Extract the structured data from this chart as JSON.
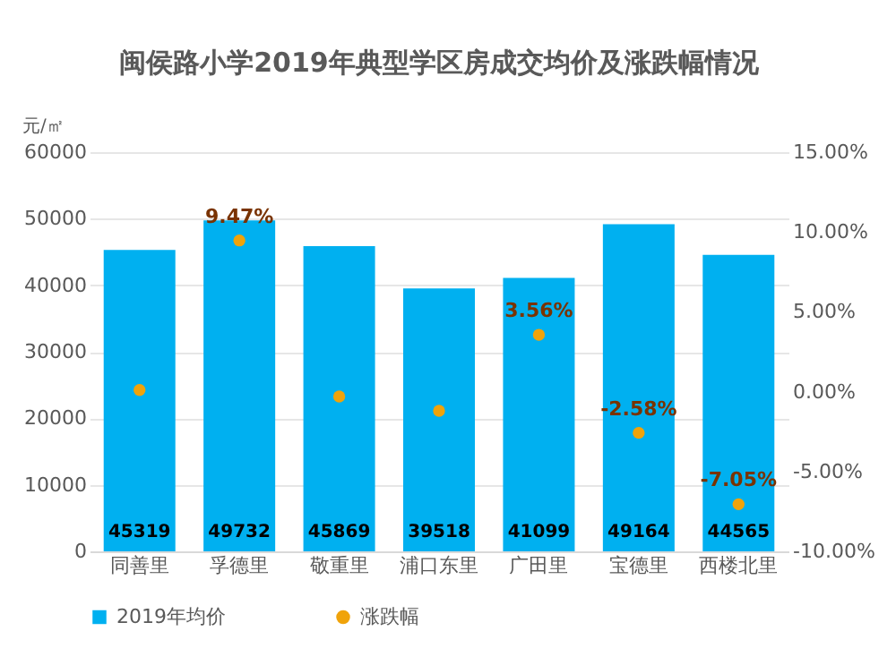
{
  "chart_data": {
    "type": "bar",
    "title": "闽侯路小学2019年典型学区房成交均价及涨跌幅情况",
    "ylabel": "元/㎡",
    "categories": [
      "同善里",
      "孚德里",
      "敬重里",
      "浦口东里",
      "广田里",
      "宝德里",
      "西楼北里"
    ],
    "series": [
      {
        "name": "2019年均价",
        "color": "#00b0f0",
        "values": [
          45319,
          49732,
          45869,
          39518,
          41099,
          49164,
          44565
        ],
        "value_labels": [
          "45319",
          "49732",
          "45869",
          "39518",
          "41099",
          "49164",
          "44565"
        ]
      },
      {
        "name": "涨跌幅",
        "type": "scatter",
        "axis": "y2",
        "color": "#f0a30a",
        "values": [
          0.1,
          9.47,
          -0.3,
          -1.2,
          3.56,
          -2.58,
          -7.05
        ],
        "value_labels": [
          null,
          "9.47%",
          null,
          null,
          "3.56%",
          "-2.58%",
          "-7.05%"
        ]
      }
    ],
    "ylim": [
      0,
      60000
    ],
    "yticks": [
      0,
      10000,
      20000,
      30000,
      40000,
      50000,
      60000
    ],
    "y2lim": [
      -10,
      15
    ],
    "y2ticks": [
      {
        "value": -10,
        "label": "-10.00%"
      },
      {
        "value": -5,
        "label": "-5.00%"
      },
      {
        "value": 0,
        "label": "0.00%"
      },
      {
        "value": 5,
        "label": "5.00%"
      },
      {
        "value": 10,
        "label": "10.00%"
      },
      {
        "value": 15,
        "label": "15.00%"
      }
    ],
    "grid": "y",
    "legend": "bottom",
    "marker": "circle"
  }
}
